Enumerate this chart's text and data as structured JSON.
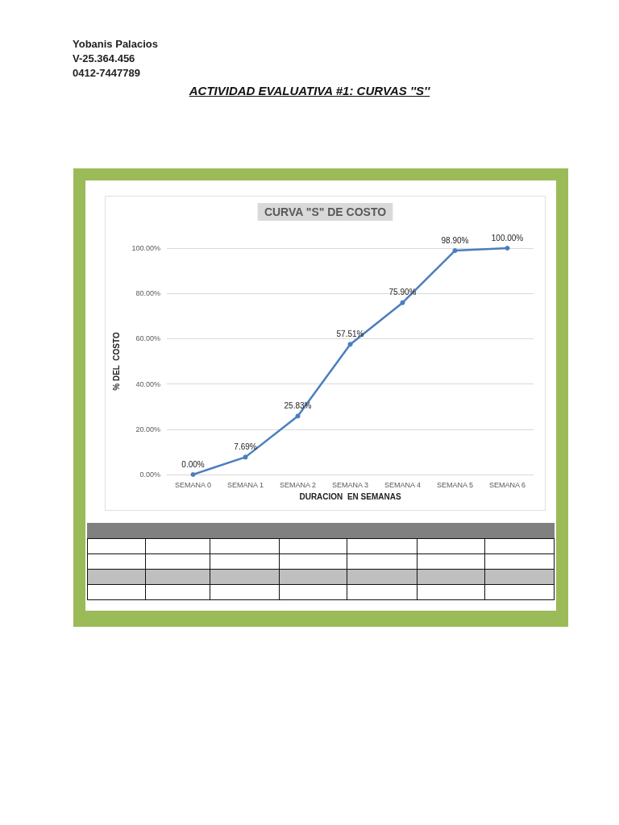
{
  "chart_data": {
    "type": "line",
    "title": "CURVA \"S\" DE COSTO",
    "xlabel": "DURACION  EN SEMANAS",
    "ylabel": "% DEL  COSTO",
    "annotations": [
      "Yobanis Palacios",
      "V-25.364.456",
      "0412-7447789",
      "ACTIVIDAD EVALUATIVA #1: CURVAS ''S''"
    ],
    "categories": [
      "SEMANA 0",
      "SEMANA 1",
      "SEMANA 2",
      "SEMANA 3",
      "SEMANA 4",
      "SEMANA 5",
      "SEMANA 6"
    ],
    "values": [
      0,
      7.69,
      25.83,
      57.51,
      75.9,
      98.9,
      100
    ],
    "value_labels": [
      "0.00%",
      "7.69%",
      "25.83%",
      "57.51%",
      "75.90%",
      "98.90%",
      "100.00%"
    ],
    "color": "#4a7ebf",
    "ylim": [
      0,
      100
    ],
    "yticks": [
      {
        "value": 0,
        "label": "0.00%"
      },
      {
        "value": 20,
        "label": "20.00%"
      },
      {
        "value": 40,
        "label": "40.00%"
      },
      {
        "value": 60,
        "label": "60.00%"
      },
      {
        "value": 80,
        "label": "80.00%"
      },
      {
        "value": 100,
        "label": "100.00%"
      }
    ],
    "grid": "y",
    "marker": "circle",
    "line_style": "solid"
  }
}
